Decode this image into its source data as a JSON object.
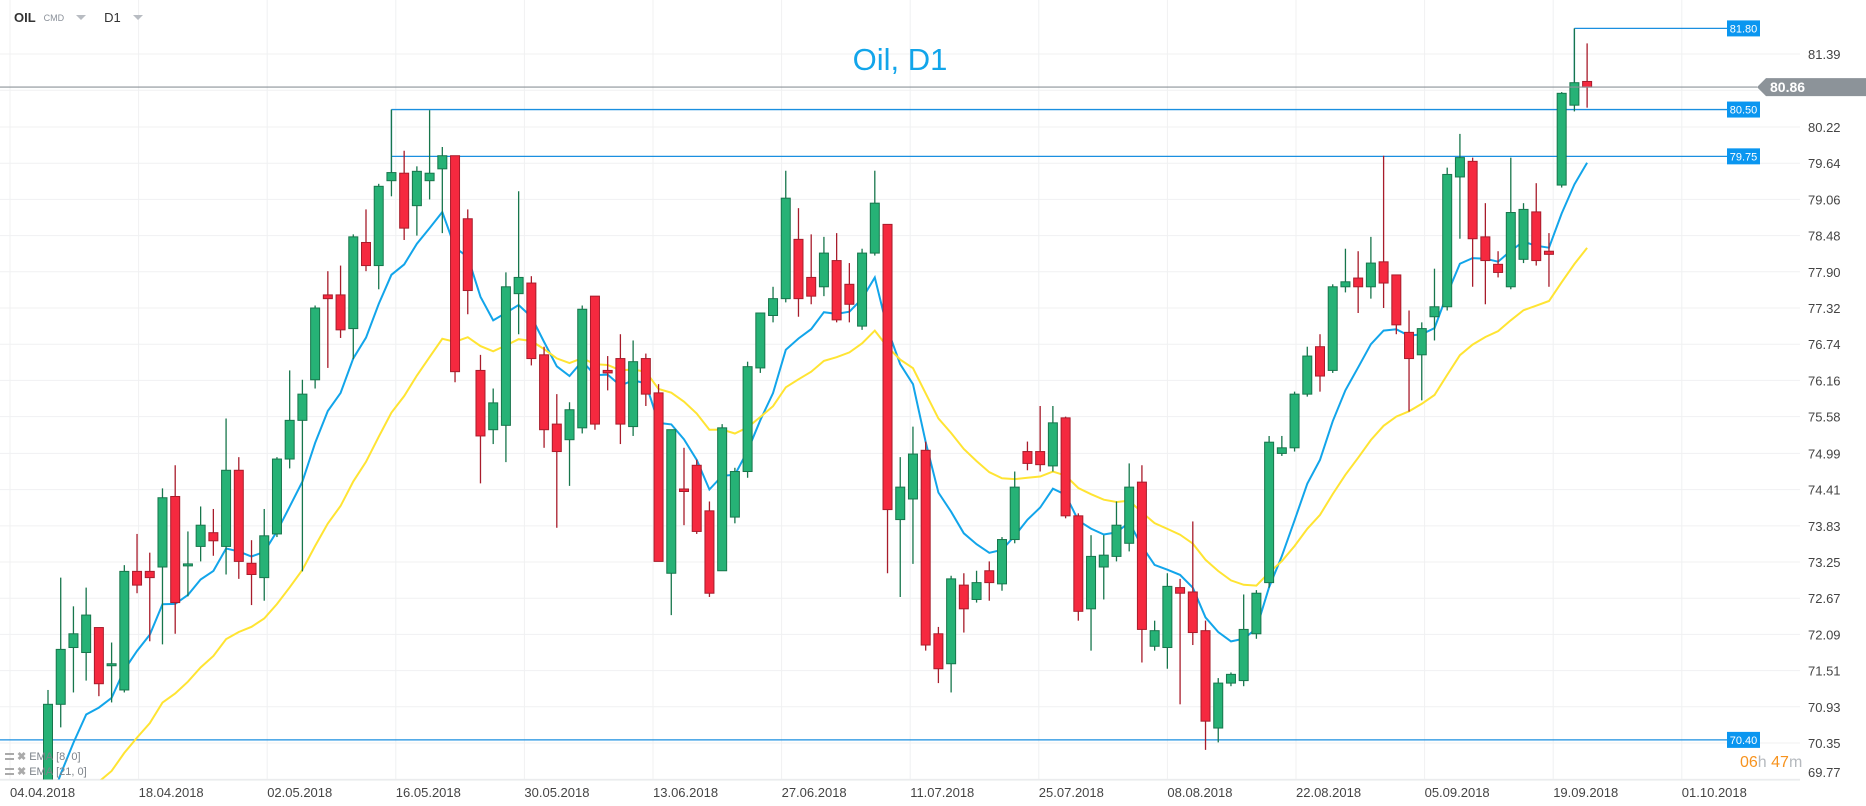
{
  "header": {
    "symbol": "OIL",
    "category": "CMD",
    "timeframe": "D1"
  },
  "legend": [
    {
      "name": "EMA",
      "params": "[8, 0]",
      "color": "#12a5ea"
    },
    {
      "name": "EMA",
      "params": "[21, 0]",
      "color": "#ffe433"
    }
  ],
  "timer": {
    "hours": "06",
    "h": "h",
    "minutes": "47",
    "m": "m"
  },
  "colors": {
    "up": "#26b276",
    "up_border": "#17764c",
    "down": "#f5293f",
    "down_border": "#a81c2b",
    "level_line": "#1a8fe0",
    "level_label": "#0a96f0",
    "price_line": "#8c9399"
  },
  "chart_data": {
    "type": "candlestick",
    "title": "Oil, D1",
    "y_ticks": [
      "81.39",
      "80.81",
      "80.22",
      "79.64",
      "79.06",
      "78.48",
      "77.90",
      "77.32",
      "76.74",
      "76.16",
      "75.58",
      "74.99",
      "74.41",
      "73.83",
      "73.25",
      "72.67",
      "72.09",
      "71.51",
      "70.93",
      "70.35",
      "69.77"
    ],
    "ylim": [
      69.77,
      81.8
    ],
    "x_ticks": [
      "04.04.2018",
      "18.04.2018",
      "02.05.2018",
      "16.05.2018",
      "30.05.2018",
      "13.06.2018",
      "27.06.2018",
      "11.07.2018",
      "25.07.2018",
      "08.08.2018",
      "22.08.2018",
      "05.09.2018",
      "19.09.2018",
      "01.10.2018"
    ],
    "grid": true,
    "ohlc": [
      [
        69.5,
        71.2,
        69.4,
        70.97
      ],
      [
        70.97,
        73.0,
        70.6,
        71.85
      ],
      [
        71.88,
        72.54,
        71.16,
        72.1
      ],
      [
        71.8,
        72.84,
        71.35,
        72.4
      ],
      [
        72.2,
        72.2,
        71.1,
        71.3
      ],
      [
        71.6,
        71.96,
        71.0,
        71.62
      ],
      [
        71.2,
        73.2,
        71.16,
        73.1
      ],
      [
        73.1,
        73.7,
        72.75,
        72.88
      ],
      [
        73.1,
        73.4,
        71.98,
        73.0
      ],
      [
        73.17,
        74.43,
        71.93,
        74.28
      ],
      [
        74.3,
        74.8,
        72.1,
        72.6
      ],
      [
        73.2,
        73.74,
        72.7,
        73.22
      ],
      [
        73.5,
        74.14,
        73.26,
        73.84
      ],
      [
        73.72,
        74.1,
        73.35,
        73.59
      ],
      [
        73.5,
        75.55,
        73.05,
        74.72
      ],
      [
        74.72,
        74.93,
        72.98,
        73.26
      ],
      [
        73.23,
        73.6,
        72.56,
        73.05
      ],
      [
        73.0,
        74.1,
        72.63,
        73.67
      ],
      [
        73.7,
        74.93,
        73.65,
        74.9
      ],
      [
        74.9,
        76.32,
        74.75,
        75.52
      ],
      [
        75.52,
        76.17,
        73.1,
        75.94
      ],
      [
        76.17,
        77.36,
        76.03,
        77.32
      ],
      [
        77.53,
        77.91,
        76.36,
        77.47
      ],
      [
        77.53,
        78.0,
        76.84,
        76.97
      ],
      [
        76.99,
        78.5,
        76.5,
        78.46
      ],
      [
        78.37,
        78.9,
        77.91,
        78.0
      ],
      [
        78.0,
        79.31,
        77.62,
        79.27
      ],
      [
        79.36,
        80.5,
        79.11,
        79.49
      ],
      [
        79.48,
        79.84,
        78.41,
        78.6
      ],
      [
        78.96,
        79.59,
        78.48,
        79.51
      ],
      [
        79.36,
        80.49,
        79.06,
        79.48
      ],
      [
        79.55,
        79.9,
        78.52,
        79.76
      ],
      [
        79.76,
        79.76,
        76.13,
        76.3
      ],
      [
        78.75,
        78.9,
        77.22,
        77.6
      ],
      [
        76.32,
        76.57,
        74.51,
        75.27
      ],
      [
        75.37,
        76.03,
        75.14,
        75.8
      ],
      [
        75.44,
        77.89,
        74.85,
        77.66
      ],
      [
        77.55,
        79.19,
        76.9,
        77.81
      ],
      [
        77.72,
        77.83,
        76.4,
        76.51
      ],
      [
        76.57,
        76.7,
        75.08,
        75.37
      ],
      [
        75.46,
        75.94,
        73.8,
        75.02
      ],
      [
        75.21,
        75.81,
        74.47,
        75.69
      ],
      [
        75.4,
        77.36,
        75.31,
        77.3
      ],
      [
        77.51,
        77.51,
        75.37,
        75.46
      ],
      [
        76.32,
        76.55,
        76.0,
        76.28
      ],
      [
        76.51,
        76.9,
        75.14,
        75.46
      ],
      [
        75.42,
        76.8,
        75.27,
        76.46
      ],
      [
        76.51,
        76.59,
        75.75,
        75.94
      ],
      [
        75.96,
        76.1,
        73.26,
        73.26
      ],
      [
        73.07,
        75.37,
        72.4,
        75.37
      ],
      [
        74.42,
        75.08,
        73.84,
        74.38
      ],
      [
        74.8,
        74.89,
        73.7,
        73.74
      ],
      [
        74.07,
        74.22,
        72.69,
        72.75
      ],
      [
        73.11,
        75.46,
        73.11,
        75.4
      ],
      [
        73.97,
        74.76,
        73.87,
        74.7
      ],
      [
        74.7,
        76.46,
        74.6,
        76.38
      ],
      [
        76.36,
        77.24,
        76.28,
        77.24
      ],
      [
        77.2,
        77.66,
        77.09,
        77.47
      ],
      [
        77.47,
        79.52,
        77.41,
        79.08
      ],
      [
        78.42,
        78.92,
        77.18,
        77.47
      ],
      [
        77.81,
        78.5,
        77.38,
        77.51
      ],
      [
        77.66,
        78.46,
        77.51,
        78.2
      ],
      [
        78.08,
        78.52,
        77.09,
        77.13
      ],
      [
        77.7,
        78.04,
        77.09,
        77.38
      ],
      [
        77.03,
        78.27,
        76.97,
        78.2
      ],
      [
        78.2,
        79.52,
        78.16,
        79.0
      ],
      [
        78.66,
        78.66,
        73.07,
        74.09
      ],
      [
        73.93,
        74.93,
        72.69,
        74.45
      ],
      [
        74.26,
        75.42,
        73.22,
        74.98
      ],
      [
        75.04,
        75.18,
        71.83,
        71.92
      ],
      [
        72.1,
        72.21,
        71.31,
        71.54
      ],
      [
        71.62,
        73.03,
        71.16,
        72.98
      ],
      [
        72.88,
        73.07,
        72.12,
        72.5
      ],
      [
        72.65,
        73.11,
        72.6,
        72.92
      ],
      [
        73.11,
        73.26,
        72.63,
        72.92
      ],
      [
        72.9,
        73.65,
        72.79,
        73.61
      ],
      [
        73.61,
        74.7,
        73.55,
        74.45
      ],
      [
        75.02,
        75.18,
        74.72,
        74.83
      ],
      [
        75.02,
        75.75,
        74.7,
        74.81
      ],
      [
        74.79,
        75.75,
        74.7,
        75.48
      ],
      [
        75.56,
        75.58,
        73.95,
        73.99
      ],
      [
        73.99,
        74.03,
        72.31,
        72.46
      ],
      [
        72.5,
        73.68,
        71.83,
        73.34
      ],
      [
        73.17,
        73.68,
        72.65,
        73.36
      ],
      [
        73.34,
        74.22,
        73.26,
        73.84
      ],
      [
        73.55,
        74.83,
        73.42,
        74.45
      ],
      [
        74.53,
        74.8,
        71.64,
        72.17
      ],
      [
        71.9,
        72.31,
        71.83,
        72.15
      ],
      [
        71.88,
        73.07,
        71.54,
        72.86
      ],
      [
        72.84,
        72.98,
        70.97,
        72.75
      ],
      [
        72.77,
        73.9,
        71.92,
        72.12
      ],
      [
        72.15,
        72.31,
        70.24,
        70.7
      ],
      [
        70.59,
        71.39,
        70.36,
        71.31
      ],
      [
        71.31,
        71.48,
        71.26,
        71.45
      ],
      [
        71.35,
        72.73,
        71.26,
        72.17
      ],
      [
        72.1,
        72.8,
        72.02,
        72.75
      ],
      [
        72.92,
        75.27,
        72.84,
        75.17
      ],
      [
        74.99,
        75.27,
        74.95,
        75.08
      ],
      [
        75.08,
        75.98,
        75.02,
        75.94
      ],
      [
        75.94,
        76.7,
        75.9,
        76.55
      ],
      [
        76.7,
        76.9,
        75.98,
        76.23
      ],
      [
        76.32,
        77.7,
        76.28,
        77.66
      ],
      [
        77.66,
        78.27,
        77.57,
        77.74
      ],
      [
        77.8,
        78.23,
        77.24,
        77.66
      ],
      [
        77.66,
        78.46,
        77.47,
        78.04
      ],
      [
        78.06,
        79.76,
        77.32,
        77.72
      ],
      [
        77.85,
        77.85,
        76.9,
        77.05
      ],
      [
        76.93,
        77.28,
        75.66,
        76.51
      ],
      [
        76.57,
        77.09,
        75.84,
        76.99
      ],
      [
        77.18,
        77.95,
        76.8,
        77.34
      ],
      [
        77.34,
        79.57,
        77.28,
        79.46
      ],
      [
        79.42,
        80.11,
        78.43,
        79.73
      ],
      [
        79.67,
        79.73,
        77.66,
        78.43
      ],
      [
        78.46,
        79.0,
        77.38,
        78.08
      ],
      [
        78.02,
        78.23,
        77.81,
        77.89
      ],
      [
        77.66,
        79.73,
        77.62,
        78.85
      ],
      [
        78.1,
        79.0,
        78.04,
        78.9
      ],
      [
        78.86,
        79.32,
        78.0,
        78.08
      ],
      [
        78.23,
        78.52,
        77.66,
        78.18
      ],
      [
        79.29,
        80.78,
        79.25,
        80.76
      ],
      [
        80.57,
        81.8,
        80.47,
        80.93
      ],
      [
        80.95,
        81.56,
        80.53,
        80.86
      ]
    ],
    "indicators": [
      {
        "name": "EMA",
        "period": 8,
        "color": "#12a5ea"
      },
      {
        "name": "EMA",
        "period": 21,
        "color": "#ffe433"
      }
    ],
    "levels": [
      {
        "value": 81.8,
        "label": "81.80"
      },
      {
        "value": 80.5,
        "label": "80.50"
      },
      {
        "value": 79.75,
        "label": "79.75"
      },
      {
        "value": 70.4,
        "label": "70.40"
      }
    ],
    "current_price": {
      "value": 80.86,
      "label": "80.86"
    }
  }
}
